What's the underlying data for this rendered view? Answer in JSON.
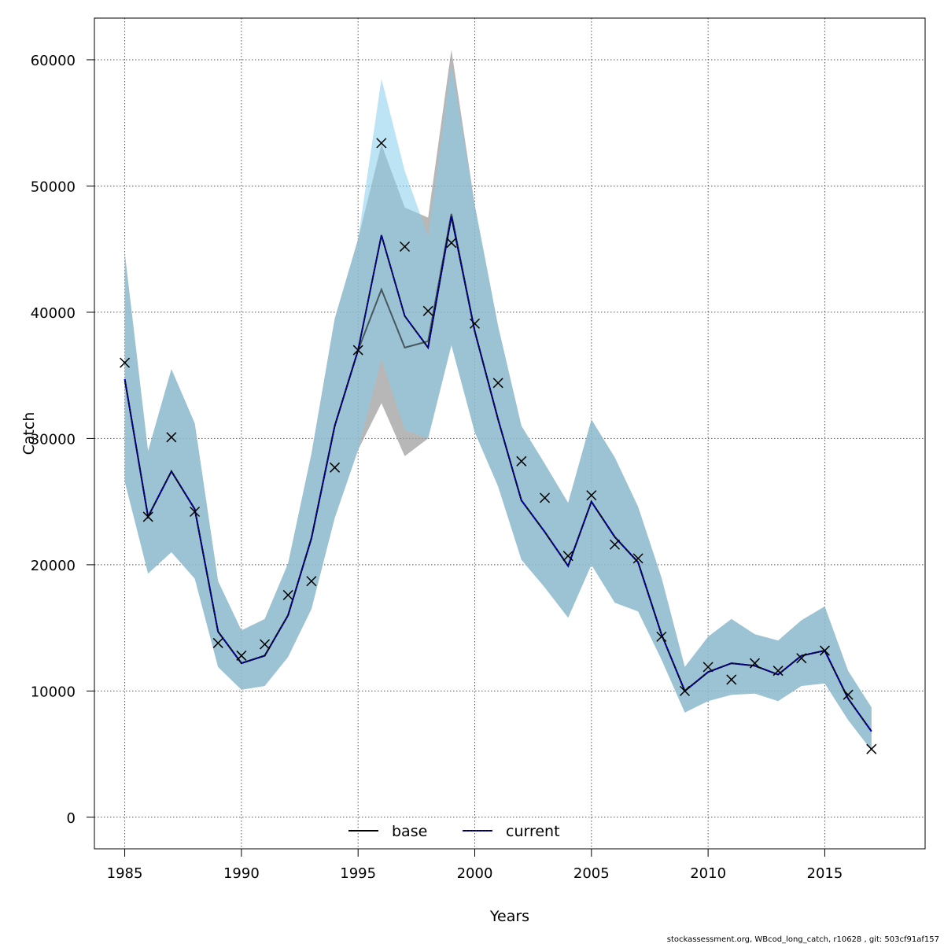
{
  "chart_data": {
    "type": "line",
    "xlabel": "Years",
    "ylabel": "Catch",
    "xlim": [
      1983.7,
      2019.3
    ],
    "ylim": [
      -2500,
      63300
    ],
    "x_ticks": [
      1985,
      1990,
      1995,
      2000,
      2005,
      2010,
      2015
    ],
    "y_ticks": [
      0,
      10000,
      20000,
      30000,
      40000,
      50000,
      60000
    ],
    "grid": true,
    "legend_position": "bottom-center",
    "footer": "stockassessment.org, WBcod_long_catch, r10628 , git: 503cf91af157",
    "colors": {
      "base_band": "#999999",
      "current_band": "#87CEEB",
      "base_line": "#000000",
      "current_line": "#0000ff",
      "observed": "#000000"
    },
    "x": [
      1985,
      1986,
      1987,
      1988,
      1989,
      1990,
      1991,
      1992,
      1993,
      1994,
      1995,
      1996,
      1997,
      1998,
      1999,
      2000,
      2001,
      2002,
      2003,
      2004,
      2005,
      2006,
      2007,
      2008,
      2009,
      2010,
      2011,
      2012,
      2013,
      2014,
      2015,
      2016,
      2017
    ],
    "series": [
      {
        "name": "base",
        "values": [
          34700,
          23800,
          27400,
          24400,
          14700,
          12200,
          12800,
          16000,
          22100,
          31000,
          37000,
          41800,
          37200,
          37700,
          47800,
          38500,
          31500,
          25100,
          22600,
          19900,
          25000,
          22200,
          20200,
          14500,
          10000,
          11500,
          12200,
          12000,
          11300,
          12800,
          13200,
          9400,
          6800
        ],
        "lower": [
          26600,
          19300,
          21000,
          18900,
          11900,
          10100,
          10400,
          12700,
          16500,
          23700,
          29100,
          32800,
          28600,
          30000,
          37400,
          30500,
          26200,
          20400,
          18200,
          15800,
          20000,
          17000,
          16300,
          12500,
          8300,
          9200,
          9700,
          9800,
          9200,
          10400,
          10600,
          7700,
          5300
        ],
        "upper": [
          44700,
          29000,
          35500,
          31200,
          18700,
          14800,
          15700,
          20100,
          28800,
          39500,
          45800,
          53300,
          48300,
          47500,
          60800,
          48500,
          38900,
          31000,
          28000,
          24900,
          31500,
          28500,
          24600,
          19000,
          11900,
          14300,
          15700,
          14500,
          14000,
          15600,
          16700,
          11600,
          8700
        ]
      },
      {
        "name": "current",
        "values": [
          34700,
          23800,
          27400,
          24400,
          14700,
          12200,
          12800,
          16000,
          22100,
          31000,
          37000,
          46100,
          39700,
          37200,
          47600,
          38500,
          31500,
          25100,
          22600,
          19900,
          25000,
          22200,
          20200,
          14500,
          10000,
          11500,
          12200,
          12000,
          11300,
          12800,
          13200,
          9400,
          6800
        ],
        "lower": [
          26600,
          19300,
          21000,
          18900,
          11900,
          10100,
          10400,
          12700,
          16500,
          23700,
          29100,
          36300,
          30700,
          30000,
          37400,
          30500,
          26200,
          20400,
          18200,
          15800,
          20000,
          17000,
          16300,
          12500,
          8300,
          9200,
          9700,
          9800,
          9200,
          10400,
          10600,
          7700,
          5300
        ],
        "upper": [
          44700,
          29000,
          35500,
          31200,
          18700,
          14800,
          15700,
          20100,
          28800,
          39500,
          45800,
          58500,
          51200,
          46000,
          59600,
          48500,
          38900,
          31000,
          28000,
          24900,
          31500,
          28500,
          24600,
          19000,
          11900,
          14300,
          15700,
          14500,
          14000,
          15600,
          16700,
          11600,
          8700
        ]
      }
    ],
    "observed": {
      "x": [
        1985,
        1986,
        1987,
        1988,
        1989,
        1990,
        1991,
        1992,
        1993,
        1994,
        1995,
        1996,
        1997,
        1998,
        1999,
        2000,
        2001,
        2002,
        2003,
        2004,
        2005,
        2006,
        2007,
        2008,
        2009,
        2010,
        2011,
        2012,
        2013,
        2014,
        2015,
        2016,
        2017
      ],
      "values": [
        36000,
        23800,
        30100,
        24200,
        13800,
        12800,
        13700,
        17600,
        18700,
        27700,
        37000,
        53400,
        45200,
        40100,
        45500,
        39100,
        34400,
        28200,
        25300,
        20700,
        25500,
        21600,
        20500,
        14300,
        10000,
        11900,
        10900,
        12200,
        11600,
        12600,
        13200,
        9700,
        5400
      ]
    }
  }
}
